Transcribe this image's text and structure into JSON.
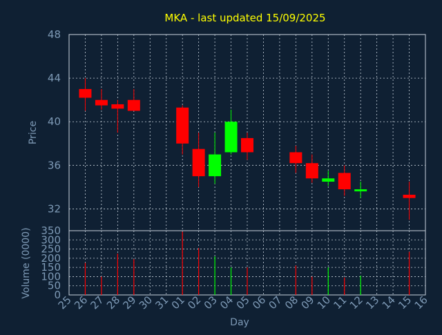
{
  "chart_data": {
    "type": "candlestick",
    "title": "MKA - last updated 15/09/2025",
    "xlabel": "Day",
    "x_ticks": [
      "25",
      "26",
      "27",
      "28",
      "29",
      "30",
      "31",
      "01",
      "02",
      "03",
      "04",
      "05",
      "06",
      "07",
      "08",
      "09",
      "10",
      "11",
      "12",
      "13",
      "14",
      "15",
      "16"
    ],
    "price": {
      "ylabel": "Price",
      "ylim": [
        30,
        48
      ],
      "y_ticks": [
        32,
        36,
        40,
        44,
        48
      ],
      "candles": [
        {
          "day": "26",
          "open": 43.0,
          "high": 44.0,
          "low": 41.0,
          "close": 42.2,
          "color": "#ff0000"
        },
        {
          "day": "27",
          "open": 42.0,
          "high": 43.0,
          "low": 41.1,
          "close": 41.5,
          "color": "#ff0000"
        },
        {
          "day": "28",
          "open": 41.6,
          "high": 42.0,
          "low": 39.0,
          "close": 41.2,
          "color": "#ff0000"
        },
        {
          "day": "29",
          "open": 42.0,
          "high": 43.0,
          "low": 41.0,
          "close": 41.0,
          "color": "#ff0000"
        },
        {
          "day": "01",
          "open": 41.3,
          "high": 41.5,
          "low": 37.0,
          "close": 38.0,
          "color": "#ff0000"
        },
        {
          "day": "02",
          "open": 37.5,
          "high": 39.0,
          "low": 34.0,
          "close": 35.0,
          "color": "#ff0000"
        },
        {
          "day": "03",
          "open": 35.0,
          "high": 39.0,
          "low": 34.3,
          "close": 37.0,
          "color": "#00ff00"
        },
        {
          "day": "04",
          "open": 37.2,
          "high": 41.1,
          "low": 37.0,
          "close": 40.0,
          "color": "#00ff00"
        },
        {
          "day": "05",
          "open": 38.5,
          "high": 39.0,
          "low": 36.5,
          "close": 37.2,
          "color": "#ff0000"
        },
        {
          "day": "08",
          "open": 37.2,
          "high": 37.8,
          "low": 35.3,
          "close": 36.2,
          "color": "#ff0000"
        },
        {
          "day": "09",
          "open": 36.2,
          "high": 37.0,
          "low": 34.4,
          "close": 34.8,
          "color": "#ff0000"
        },
        {
          "day": "10",
          "open": 34.5,
          "high": 35.5,
          "low": 34.1,
          "close": 34.8,
          "color": "#00ff00"
        },
        {
          "day": "11",
          "open": 35.3,
          "high": 36.0,
          "low": 33.2,
          "close": 33.8,
          "color": "#ff0000"
        },
        {
          "day": "12",
          "open": 33.7,
          "high": 34.5,
          "low": 33.0,
          "close": 33.8,
          "color": "#00ff00"
        },
        {
          "day": "15",
          "open": 33.3,
          "high": 34.5,
          "low": 31.0,
          "close": 33.0,
          "color": "#ff0000"
        }
      ]
    },
    "volume": {
      "ylabel": "Volume (0000)",
      "ylim": [
        0,
        350
      ],
      "y_ticks": [
        0,
        50,
        100,
        150,
        200,
        250,
        300,
        350
      ],
      "bars": [
        {
          "day": "26",
          "value": 175,
          "color": "#ff0000"
        },
        {
          "day": "27",
          "value": 100,
          "color": "#ff0000"
        },
        {
          "day": "28",
          "value": 225,
          "color": "#ff0000"
        },
        {
          "day": "29",
          "value": 195,
          "color": "#ff0000"
        },
        {
          "day": "01",
          "value": 345,
          "color": "#ff0000"
        },
        {
          "day": "02",
          "value": 255,
          "color": "#ff0000"
        },
        {
          "day": "03",
          "value": 210,
          "color": "#00ff00"
        },
        {
          "day": "04",
          "value": 150,
          "color": "#00ff00"
        },
        {
          "day": "05",
          "value": 150,
          "color": "#ff0000"
        },
        {
          "day": "08",
          "value": 160,
          "color": "#ff0000"
        },
        {
          "day": "09",
          "value": 100,
          "color": "#ff0000"
        },
        {
          "day": "10",
          "value": 150,
          "color": "#00ff00"
        },
        {
          "day": "11",
          "value": 95,
          "color": "#ff0000"
        },
        {
          "day": "12",
          "value": 105,
          "color": "#00ff00"
        },
        {
          "day": "15",
          "value": 235,
          "color": "#ff0000"
        }
      ]
    },
    "grid": true,
    "colors": {
      "background": "#0f2033",
      "up": "#00ff00",
      "down": "#ff0000",
      "grid": "#c8d2dc",
      "text": "#7e9ab6",
      "title": "#ffff00"
    }
  }
}
